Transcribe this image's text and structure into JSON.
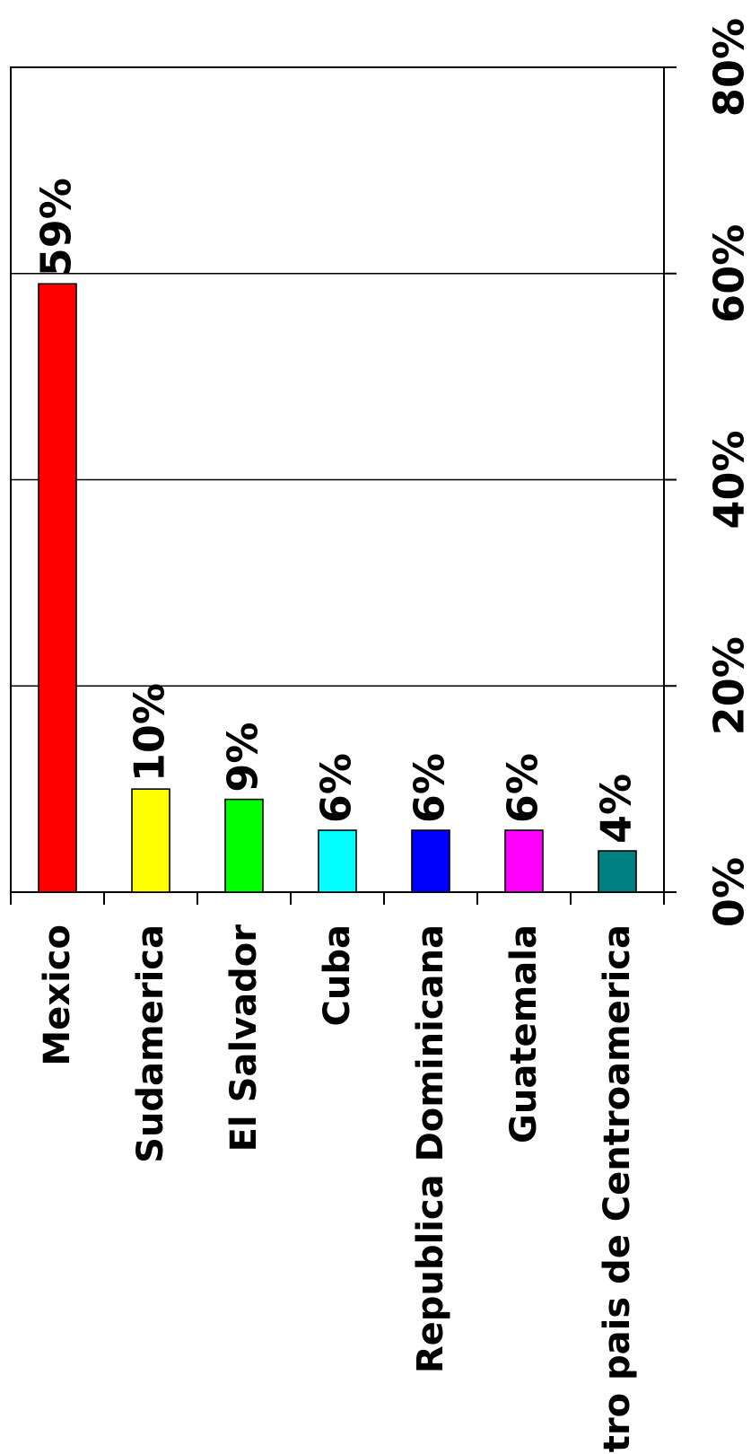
{
  "chart_data": {
    "type": "bar",
    "orientation": "rotated",
    "categories": [
      "Mexico",
      "Sudamerica",
      "El Salvador",
      "Cuba",
      "Republica Dominicana",
      "Guatemala",
      "Otro pais de Centroamerica"
    ],
    "values": [
      59,
      10,
      9,
      6,
      6,
      6,
      4
    ],
    "data_labels": [
      "59%",
      "10%",
      "9%",
      "6%",
      "6%",
      "6%",
      "4%"
    ],
    "colors": [
      "#FF0000",
      "#FFFF00",
      "#00FF00",
      "#00FFFF",
      "#0000FF",
      "#FF00FF",
      "#008080"
    ],
    "ylim": [
      0,
      80
    ],
    "yticks": [
      0,
      20,
      40,
      60,
      80
    ],
    "ytick_labels": [
      "0%",
      "20%",
      "40%",
      "60%",
      "80%"
    ],
    "grid": true,
    "title": "",
    "xlabel": "",
    "ylabel": ""
  }
}
